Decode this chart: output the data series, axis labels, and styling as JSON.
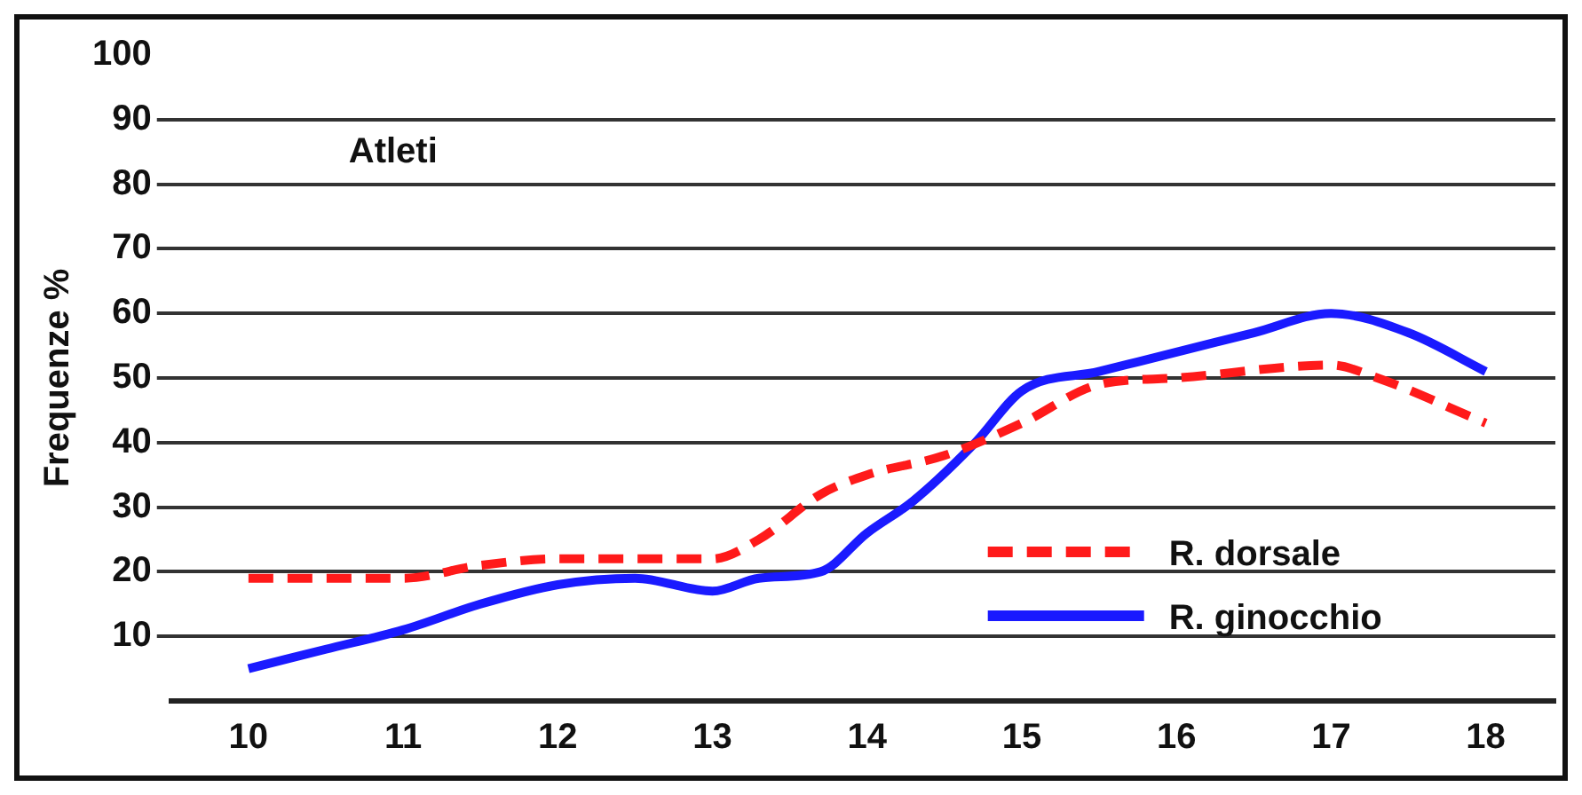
{
  "chart_data": {
    "type": "line",
    "annotations": [
      "Atleti"
    ],
    "ylabel": "Frequenze %",
    "xlim": [
      9.5,
      18.45
    ],
    "xticks": [
      10,
      11,
      12,
      13,
      14,
      15,
      16,
      17,
      18
    ],
    "ylim": [
      0,
      100
    ],
    "yticks": [
      10,
      20,
      30,
      40,
      50,
      60,
      70,
      80,
      90,
      100
    ],
    "grid": "y",
    "legend": "bottom right",
    "marker": "none",
    "series": [
      {
        "name": "R. dorsale",
        "color": "#ff1a1a",
        "line_style": "dashed",
        "x": [
          10,
          11,
          11.5,
          12,
          13,
          13.3,
          13.7,
          14,
          14.5,
          15,
          15.5,
          16,
          17,
          17.3,
          18
        ],
        "values": [
          19,
          19,
          21,
          22,
          22,
          25,
          32,
          35,
          38,
          43,
          49,
          50,
          52,
          50,
          43
        ]
      },
      {
        "name": "R. ginocchio",
        "color": "#1a1aff",
        "line_style": "solid",
        "x": [
          10,
          10.5,
          11,
          11.5,
          12,
          12.5,
          13,
          13.3,
          13.7,
          14,
          14.3,
          14.7,
          15,
          15.5,
          16,
          16.5,
          17,
          17.5,
          18
        ],
        "values": [
          5,
          8,
          11,
          15,
          18,
          19,
          17,
          19,
          20,
          26,
          31,
          40,
          48,
          51,
          54,
          57,
          60,
          57,
          51
        ]
      }
    ]
  }
}
